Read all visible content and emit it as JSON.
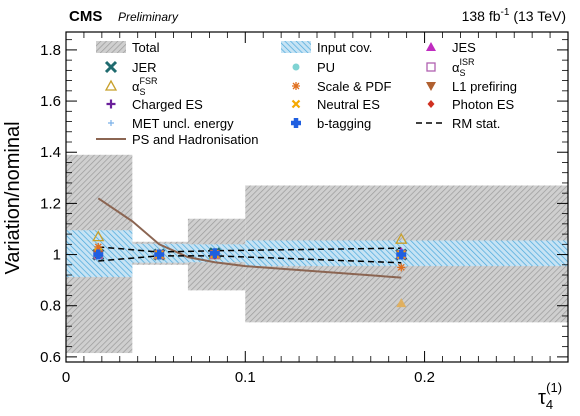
{
  "header": {
    "experiment": "CMS",
    "status": "Preliminary",
    "lumi_value": "138 fb",
    "lumi_exp": "-1",
    "energy": " (13 TeV)"
  },
  "chart_data": {
    "type": "bar",
    "xlabel": "τ",
    "xlabel_sub": "4",
    "xlabel_sup": "(1)",
    "ylabel": "Variation/nominal",
    "xlim": [
      0,
      0.28
    ],
    "ylim": [
      0.58,
      1.87
    ],
    "x_ticks": [
      0,
      0.1,
      0.2
    ],
    "x_tick_labels": [
      "0",
      "0.1",
      "0.2"
    ],
    "y_ticks": [
      0.6,
      0.8,
      1.0,
      1.2,
      1.4,
      1.6,
      1.8
    ],
    "y_tick_labels": [
      "0.6",
      "0.8",
      "1",
      "1.2",
      "1.4",
      "1.6",
      "1.8"
    ],
    "bin_edges": [
      0,
      0.037,
      0.068,
      0.1,
      0.28
    ],
    "bin_centers": [
      0.018,
      0.052,
      0.083,
      0.187
    ],
    "total_band": [
      [
        0.615,
        1.39
      ],
      [
        0.96,
        1.05
      ],
      [
        0.86,
        1.14
      ],
      [
        0.735,
        1.27
      ]
    ],
    "input_cov_band": [
      [
        0.912,
        1.095
      ],
      [
        0.968,
        1.042
      ],
      [
        0.97,
        1.04
      ],
      [
        0.955,
        1.055
      ]
    ],
    "rm_stat": {
      "upper": [
        1.03,
        1.01,
        1.015,
        1.025
      ],
      "lower": [
        0.975,
        0.995,
        0.995,
        0.968
      ]
    },
    "ps_hadronisation": [
      [
        0.018,
        1.22
      ],
      [
        0.037,
        1.13
      ],
      [
        0.052,
        1.04
      ],
      [
        0.068,
        0.99
      ],
      [
        0.083,
        0.97
      ],
      [
        0.1,
        0.955
      ],
      [
        0.187,
        0.91
      ]
    ],
    "series": [
      {
        "name": "JER",
        "color": "#1f6b6f",
        "marker": "xcross",
        "values": [
          1.0,
          1.0,
          1.005,
          1.0
        ]
      },
      {
        "name": "JES",
        "color": "#c02bc0",
        "marker": "triangle-up",
        "values": [
          1.02,
          1.0,
          1.005,
          1.01
        ]
      },
      {
        "name": "αS^FSR",
        "color": "#c8a02a",
        "marker": "triangle-up-open",
        "values": [
          1.07,
          1.0,
          1.0,
          1.06
        ]
      },
      {
        "name": "PU",
        "color": "#7fd3d3",
        "marker": "circle",
        "values": [
          1.0,
          1.0,
          1.0,
          0.995
        ]
      },
      {
        "name": "αS^ISR",
        "color": "#b060b0",
        "marker": "square-open",
        "values": [
          1.0,
          1.0,
          1.0,
          1.0
        ]
      },
      {
        "name": "Charged ES",
        "color": "#6a1f9a",
        "marker": "plus",
        "values": [
          1.0,
          1.0,
          1.0,
          1.0
        ]
      },
      {
        "name": "Scale & PDF",
        "color": "#e07020",
        "marker": "star",
        "values": [
          1.03,
          1.0,
          1.005,
          0.95
        ]
      },
      {
        "name": "L1 prefiring",
        "color": "#b06030",
        "marker": "triangle-down",
        "values": [
          1.0,
          1.0,
          1.0,
          1.0
        ]
      },
      {
        "name": "MET uncl. energy",
        "color": "#7ab0e8",
        "marker": "plus-small",
        "values": [
          1.0,
          1.0,
          1.0,
          1.0
        ]
      },
      {
        "name": "Neutral ES",
        "color": "#f5a800",
        "marker": "xcross-small",
        "values": [
          1.01,
          1.0,
          1.0,
          1.0
        ]
      },
      {
        "name": "Photon ES",
        "color": "#d03020",
        "marker": "diamond",
        "values": [
          1.0,
          1.0,
          1.0,
          1.0
        ]
      },
      {
        "name": "b-tagging",
        "color": "#1f5fe0",
        "marker": "cross-bold",
        "values": [
          1.0,
          1.0,
          1.005,
          1.0
        ]
      },
      {
        "name": "Scale & PDF (low)",
        "color": "#e0b060",
        "marker": "triangle-up",
        "values": [
          null,
          null,
          null,
          0.81
        ]
      }
    ],
    "legend": {
      "position": "top",
      "entries": [
        {
          "label": "Total",
          "symbol": "hatch-gray"
        },
        {
          "label": "Input cov.",
          "symbol": "hatch-blue"
        },
        {
          "label": "JES",
          "symbol": "triangle-up",
          "color": "#c02bc0"
        },
        {
          "label": "JER",
          "symbol": "xcross",
          "color": "#1f6b6f"
        },
        {
          "label": "PU",
          "symbol": "circle",
          "color": "#7fd3d3"
        },
        {
          "label": "α",
          "sub": "S",
          "sup": "ISR",
          "symbol": "square-open",
          "color": "#b060b0"
        },
        {
          "label": "α",
          "sub": "S",
          "sup": "FSR",
          "symbol": "triangle-up-open",
          "color": "#c8a02a"
        },
        {
          "label": "Scale & PDF",
          "symbol": "star",
          "color": "#e07020"
        },
        {
          "label": "L1 prefiring",
          "symbol": "triangle-down",
          "color": "#b06030"
        },
        {
          "label": "Charged ES",
          "symbol": "plus",
          "color": "#6a1f9a"
        },
        {
          "label": "Neutral ES",
          "symbol": "xcross-small",
          "color": "#f5a800"
        },
        {
          "label": "Photon ES",
          "symbol": "diamond",
          "color": "#d03020"
        },
        {
          "label": "MET uncl. energy",
          "symbol": "plus-small",
          "color": "#7ab0e8"
        },
        {
          "label": "b-tagging",
          "symbol": "cross-bold",
          "color": "#1f5fe0"
        },
        {
          "label": "RM stat.",
          "symbol": "dashed-line"
        },
        {
          "label": "PS and Hadronisation",
          "symbol": "line",
          "color": "#8b6552"
        }
      ]
    }
  }
}
